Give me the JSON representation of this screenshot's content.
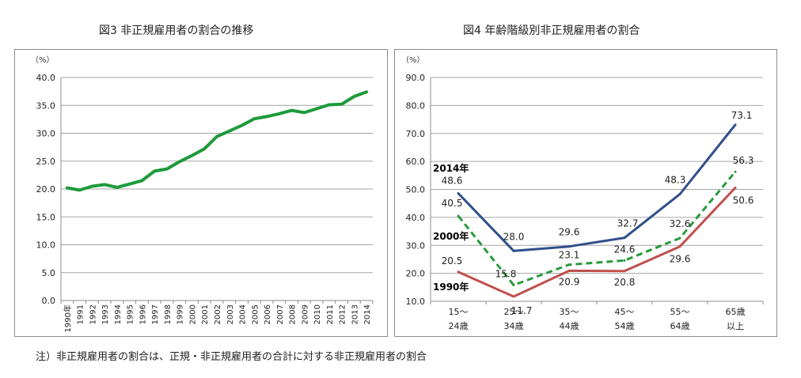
{
  "note": "注）非正規雇用者の割合は、正規・非正規雇用者の合計に対する非正規雇用者の割合",
  "chart_data": [
    {
      "type": "line",
      "title": "図3 非正規雇用者の割合の推移",
      "ylabel": "（%）",
      "ylim": [
        0,
        40
      ],
      "yticks": [
        "0.0",
        "5.0",
        "10.0",
        "15.0",
        "20.0",
        "25.0",
        "30.0",
        "35.0",
        "40.0"
      ],
      "ytick_values": [
        0,
        5,
        10,
        15,
        20,
        25,
        30,
        35,
        40
      ],
      "grid": true,
      "color": "#1e9a3a",
      "categories": [
        "1990年",
        "1991",
        "1992",
        "1993",
        "1994",
        "1995",
        "1996",
        "1997",
        "1998",
        "1999",
        "2000",
        "2001",
        "2002",
        "2003",
        "2004",
        "2005",
        "2006",
        "2007",
        "2008",
        "2009",
        "2010",
        "2011",
        "2012",
        "2013",
        "2014"
      ],
      "values": [
        20.2,
        19.8,
        20.5,
        20.8,
        20.3,
        20.9,
        21.5,
        23.2,
        23.6,
        24.9,
        26.0,
        27.2,
        29.4,
        30.4,
        31.4,
        32.6,
        33.0,
        33.5,
        34.1,
        33.7,
        34.4,
        35.1,
        35.2,
        36.6,
        37.4
      ]
    },
    {
      "type": "line",
      "title": "図4 年齢階級別非正規雇用者の割合",
      "ylabel": "（%）",
      "ylim": [
        10,
        90
      ],
      "yticks": [
        "10.0",
        "20.0",
        "30.0",
        "40.0",
        "50.0",
        "60.0",
        "70.0",
        "80.0",
        "90.0"
      ],
      "ytick_values": [
        10,
        20,
        30,
        40,
        50,
        60,
        70,
        80,
        90
      ],
      "grid": true,
      "categories": [
        [
          "15～",
          "24歳"
        ],
        [
          "25～",
          "34歳"
        ],
        [
          "35～",
          "44歳"
        ],
        [
          "45～",
          "54歳"
        ],
        [
          "55～",
          "64歳"
        ],
        [
          "65歳",
          "以上"
        ]
      ],
      "series": [
        {
          "name": "2014年",
          "color": "#2f4f8a",
          "dash": false,
          "values": [
            48.6,
            28.0,
            29.6,
            32.7,
            48.3,
            73.1
          ],
          "labels": [
            "48.6",
            "28.0",
            "29.6",
            "32.7",
            "48.3",
            "73.1"
          ]
        },
        {
          "name": "2000年",
          "color": "#2a9a3e",
          "dash": true,
          "values": [
            40.5,
            15.8,
            23.1,
            24.6,
            32.6,
            56.3
          ],
          "labels": [
            "40.5",
            "15.8",
            "23.1",
            "24.6",
            "32.6",
            "56.3"
          ]
        },
        {
          "name": "1990年",
          "color": "#c0504d",
          "dash": false,
          "values": [
            20.5,
            11.7,
            20.9,
            20.8,
            29.6,
            50.6
          ],
          "labels": [
            "20.5",
            "11.7",
            "20.9",
            "20.8",
            "29.6",
            "50.6"
          ]
        }
      ]
    }
  ]
}
